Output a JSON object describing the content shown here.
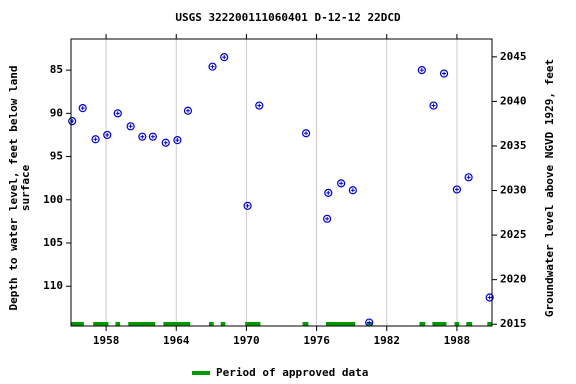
{
  "chart_data": {
    "type": "scatter",
    "title": "USGS 322200111060401 D-12-12 22DCD",
    "ylabel": [
      "Depth to water level, feet below land",
      "surface"
    ],
    "y2label": "Groundwater level above NGVD 1929, feet",
    "xlim": [
      1955,
      1991
    ],
    "xticks": [
      1958,
      1964,
      1970,
      1976,
      1982,
      1988
    ],
    "ylim": [
      81.4,
      114.6
    ],
    "yticks": [
      85,
      90,
      95,
      100,
      105,
      110
    ],
    "y_inverted": true,
    "y2lim": [
      2014.8,
      2047.0
    ],
    "y2ticks": [
      2015,
      2020,
      2025,
      2030,
      2035,
      2040,
      2045
    ],
    "grid": "x",
    "series": [
      {
        "color": "#0000cc",
        "x": [
          1955.1,
          1956.0,
          1957.1,
          1958.1,
          1959.0,
          1960.1,
          1961.1,
          1962.0,
          1963.1,
          1964.1,
          1965.0,
          1967.1,
          1968.1,
          1970.1,
          1971.1,
          1975.1,
          1976.9,
          1977.0,
          1978.1,
          1979.1,
          1980.5,
          1985.0,
          1986.0,
          1986.9,
          1988.0,
          1989.0,
          1990.8
        ],
        "values": [
          90.9,
          89.4,
          93.0,
          92.5,
          90.0,
          91.5,
          92.7,
          92.7,
          93.4,
          93.1,
          89.7,
          84.6,
          83.5,
          100.7,
          89.1,
          92.3,
          102.2,
          99.2,
          98.1,
          98.9,
          114.2,
          85.0,
          89.1,
          85.4,
          98.8,
          97.4,
          111.3
        ]
      }
    ],
    "approved": {
      "name": "Period of approved data",
      "color": "#009900",
      "periods": [
        [
          1955.0,
          1956.1
        ],
        [
          1956.9,
          1958.2
        ],
        [
          1958.8,
          1959.2
        ],
        [
          1959.9,
          1962.2
        ],
        [
          1962.9,
          1965.2
        ],
        [
          1966.8,
          1967.2
        ],
        [
          1967.8,
          1968.2
        ],
        [
          1969.9,
          1971.2
        ],
        [
          1974.8,
          1975.3
        ],
        [
          1976.8,
          1979.3
        ],
        [
          1980.3,
          1980.8
        ],
        [
          1984.8,
          1985.3
        ],
        [
          1985.9,
          1987.1
        ],
        [
          1987.8,
          1988.2
        ],
        [
          1988.8,
          1989.3
        ],
        [
          1990.6,
          1991.0
        ]
      ]
    }
  }
}
